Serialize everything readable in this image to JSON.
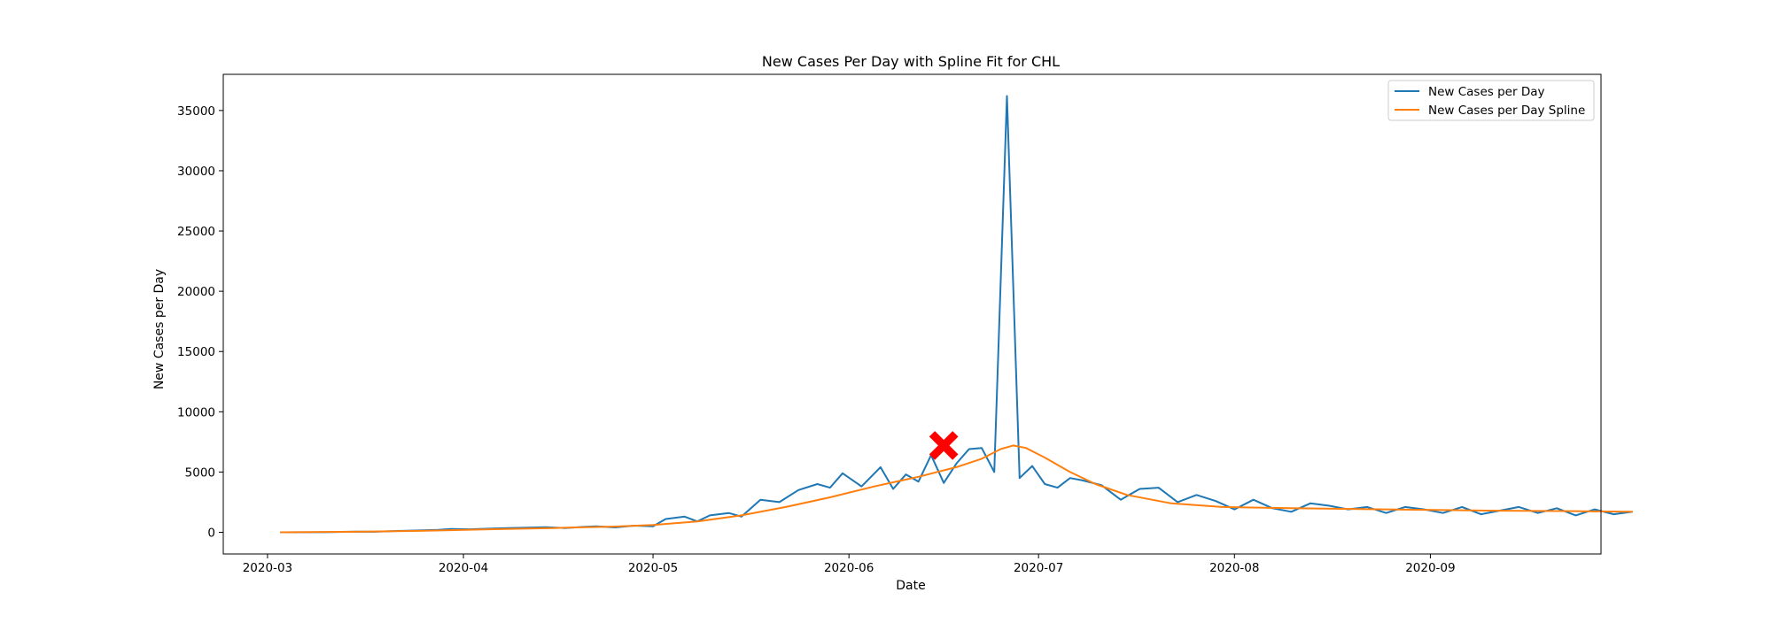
{
  "chart_data": {
    "type": "line",
    "title": "New Cases Per Day with Spline Fit for CHL",
    "xlabel": "Date",
    "ylabel": "New Cases per Day",
    "x_type": "date",
    "xlim": [
      "2020-02-23",
      "2020-09-28"
    ],
    "ylim": [
      -1800,
      38000
    ],
    "x_ticks": [
      "2020-03-01",
      "2020-04-01",
      "2020-05-01",
      "2020-06-01",
      "2020-07-01",
      "2020-08-01",
      "2020-09-01"
    ],
    "x_tick_labels": [
      "2020-03",
      "2020-04",
      "2020-05",
      "2020-06",
      "2020-07",
      "2020-08",
      "2020-09"
    ],
    "y_ticks": [
      0,
      5000,
      10000,
      15000,
      20000,
      25000,
      30000,
      35000
    ],
    "y_tick_labels": [
      "0",
      "5000",
      "10000",
      "15000",
      "20000",
      "25000",
      "30000",
      "35000"
    ],
    "grid": false,
    "legend_position": "top-right",
    "series": [
      {
        "name": "New Cases per Day",
        "color": "#1f77b4",
        "points": [
          [
            "2020-03-03",
            0
          ],
          [
            "2020-03-10",
            10
          ],
          [
            "2020-03-15",
            60
          ],
          [
            "2020-03-18",
            40
          ],
          [
            "2020-03-21",
            100
          ],
          [
            "2020-03-25",
            150
          ],
          [
            "2020-03-28",
            200
          ],
          [
            "2020-03-30",
            280
          ],
          [
            "2020-04-02",
            250
          ],
          [
            "2020-04-05",
            300
          ],
          [
            "2020-04-08",
            350
          ],
          [
            "2020-04-11",
            380
          ],
          [
            "2020-04-14",
            420
          ],
          [
            "2020-04-17",
            350
          ],
          [
            "2020-04-20",
            450
          ],
          [
            "2020-04-22",
            500
          ],
          [
            "2020-04-25",
            400
          ],
          [
            "2020-04-28",
            550
          ],
          [
            "2020-05-01",
            500
          ],
          [
            "2020-05-03",
            1100
          ],
          [
            "2020-05-06",
            1300
          ],
          [
            "2020-05-08",
            900
          ],
          [
            "2020-05-10",
            1400
          ],
          [
            "2020-05-13",
            1600
          ],
          [
            "2020-05-15",
            1300
          ],
          [
            "2020-05-18",
            2700
          ],
          [
            "2020-05-21",
            2500
          ],
          [
            "2020-05-24",
            3500
          ],
          [
            "2020-05-27",
            4000
          ],
          [
            "2020-05-29",
            3700
          ],
          [
            "2020-05-31",
            4900
          ],
          [
            "2020-06-03",
            3800
          ],
          [
            "2020-06-06",
            5400
          ],
          [
            "2020-06-08",
            3600
          ],
          [
            "2020-06-10",
            4800
          ],
          [
            "2020-06-12",
            4200
          ],
          [
            "2020-06-14",
            6400
          ],
          [
            "2020-06-16",
            4100
          ],
          [
            "2020-06-18",
            5700
          ],
          [
            "2020-06-20",
            6900
          ],
          [
            "2020-06-22",
            7000
          ],
          [
            "2020-06-24",
            5000
          ],
          [
            "2020-06-26",
            36200
          ],
          [
            "2020-06-28",
            4500
          ],
          [
            "2020-06-30",
            5500
          ],
          [
            "2020-07-02",
            4000
          ],
          [
            "2020-07-04",
            3700
          ],
          [
            "2020-07-06",
            4500
          ],
          [
            "2020-07-08",
            4300
          ],
          [
            "2020-07-11",
            3900
          ],
          [
            "2020-07-14",
            2700
          ],
          [
            "2020-07-17",
            3600
          ],
          [
            "2020-07-20",
            3700
          ],
          [
            "2020-07-23",
            2500
          ],
          [
            "2020-07-26",
            3100
          ],
          [
            "2020-07-29",
            2600
          ],
          [
            "2020-08-01",
            1900
          ],
          [
            "2020-08-04",
            2700
          ],
          [
            "2020-08-07",
            2000
          ],
          [
            "2020-08-10",
            1700
          ],
          [
            "2020-08-13",
            2400
          ],
          [
            "2020-08-16",
            2200
          ],
          [
            "2020-08-19",
            1900
          ],
          [
            "2020-08-22",
            2100
          ],
          [
            "2020-08-25",
            1600
          ],
          [
            "2020-08-28",
            2100
          ],
          [
            "2020-08-31",
            1900
          ],
          [
            "2020-09-03",
            1600
          ],
          [
            "2020-09-06",
            2100
          ],
          [
            "2020-09-09",
            1500
          ],
          [
            "2020-09-12",
            1800
          ],
          [
            "2020-09-15",
            2100
          ],
          [
            "2020-09-18",
            1600
          ],
          [
            "2020-09-21",
            2000
          ],
          [
            "2020-09-24",
            1400
          ],
          [
            "2020-09-27",
            1900
          ],
          [
            "2020-09-30",
            1500
          ],
          [
            "2020-10-03",
            1700
          ]
        ]
      },
      {
        "name": "New Cases per Day Spline",
        "color": "#ff7f0e",
        "points": [
          [
            "2020-03-03",
            0
          ],
          [
            "2020-03-15",
            40
          ],
          [
            "2020-03-25",
            120
          ],
          [
            "2020-04-05",
            250
          ],
          [
            "2020-04-15",
            350
          ],
          [
            "2020-04-25",
            480
          ],
          [
            "2020-05-01",
            600
          ],
          [
            "2020-05-08",
            900
          ],
          [
            "2020-05-15",
            1400
          ],
          [
            "2020-05-22",
            2100
          ],
          [
            "2020-05-29",
            2900
          ],
          [
            "2020-06-05",
            3800
          ],
          [
            "2020-06-12",
            4600
          ],
          [
            "2020-06-18",
            5400
          ],
          [
            "2020-06-22",
            6100
          ],
          [
            "2020-06-25",
            6900
          ],
          [
            "2020-06-27",
            7200
          ],
          [
            "2020-06-29",
            7000
          ],
          [
            "2020-07-02",
            6200
          ],
          [
            "2020-07-06",
            5000
          ],
          [
            "2020-07-10",
            4000
          ],
          [
            "2020-07-15",
            3100
          ],
          [
            "2020-07-22",
            2400
          ],
          [
            "2020-07-30",
            2100
          ],
          [
            "2020-08-10",
            2000
          ],
          [
            "2020-08-25",
            1900
          ],
          [
            "2020-09-10",
            1800
          ],
          [
            "2020-09-25",
            1750
          ],
          [
            "2020-10-03",
            1700
          ]
        ]
      }
    ],
    "marker": {
      "symbol": "X",
      "color": "#ff0000",
      "point": [
        "2020-06-16",
        7200
      ]
    }
  }
}
